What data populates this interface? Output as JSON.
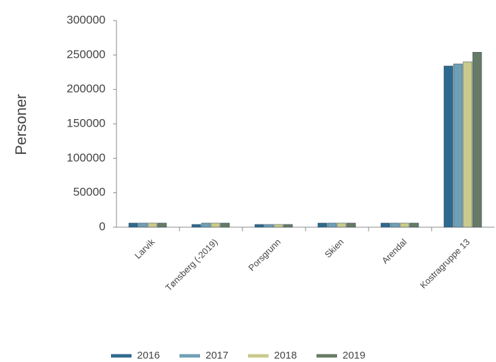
{
  "chart_data": {
    "type": "bar",
    "y_label": "Personer",
    "categories": [
      "Larvik",
      "Tønsberg (-2019)",
      "Porsgrunn",
      "Skien",
      "Arendal",
      "Kostragruppe 13"
    ],
    "series": [
      {
        "name": "2016",
        "color": "#2e6a8e",
        "values": [
          6000,
          4000,
          4000,
          6000,
          6000,
          234000
        ]
      },
      {
        "name": "2017",
        "color": "#6f9fb5",
        "values": [
          6000,
          6000,
          4000,
          6000,
          6000,
          237000
        ]
      },
      {
        "name": "2018",
        "color": "#c9ca8c",
        "values": [
          6000,
          6000,
          4000,
          6000,
          6000,
          240000
        ]
      },
      {
        "name": "2019",
        "color": "#667b65",
        "values": [
          6000,
          6000,
          4000,
          6000,
          6000,
          254000
        ]
      }
    ],
    "ylim": [
      0,
      300000
    ],
    "yticks": [
      0,
      50000,
      100000,
      150000,
      200000,
      250000,
      300000
    ],
    "legend": "bottom"
  }
}
